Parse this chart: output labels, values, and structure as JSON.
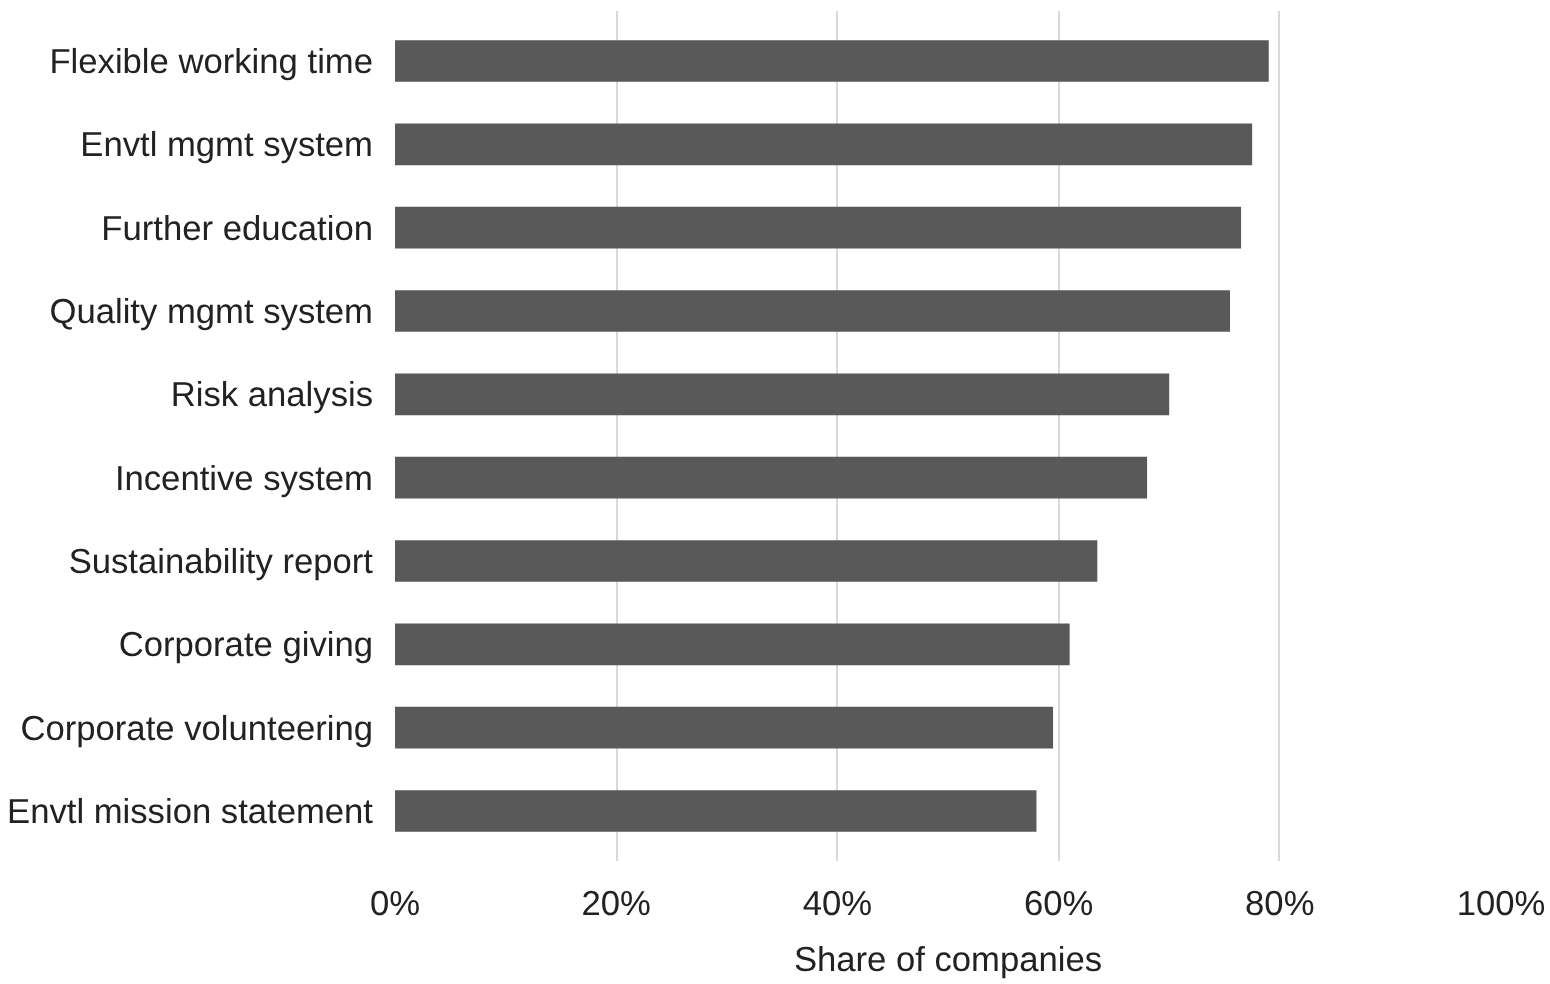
{
  "chart_data": {
    "type": "bar",
    "orientation": "horizontal",
    "xlabel": "Share of companies",
    "categories": [
      "Flexible working time",
      "Envtl mgmt system",
      "Further education",
      "Quality mgmt system",
      "Risk analysis",
      "Incentive system",
      "Sustainability report",
      "Corporate giving",
      "Corporate volunteering",
      "Envtl mission statement"
    ],
    "values": [
      79,
      77.5,
      76.5,
      75.5,
      70,
      68,
      63.5,
      61,
      59.5,
      58
    ],
    "color": "#595959",
    "xlim": [
      0,
      100
    ],
    "xticks": [
      {
        "value": 0,
        "label": "0%"
      },
      {
        "value": 20,
        "label": "20%"
      },
      {
        "value": 40,
        "label": "40%"
      },
      {
        "value": 60,
        "label": "60%"
      },
      {
        "value": 80,
        "label": "80%"
      },
      {
        "value": 100,
        "label": "100%"
      }
    ],
    "grid": "x"
  }
}
